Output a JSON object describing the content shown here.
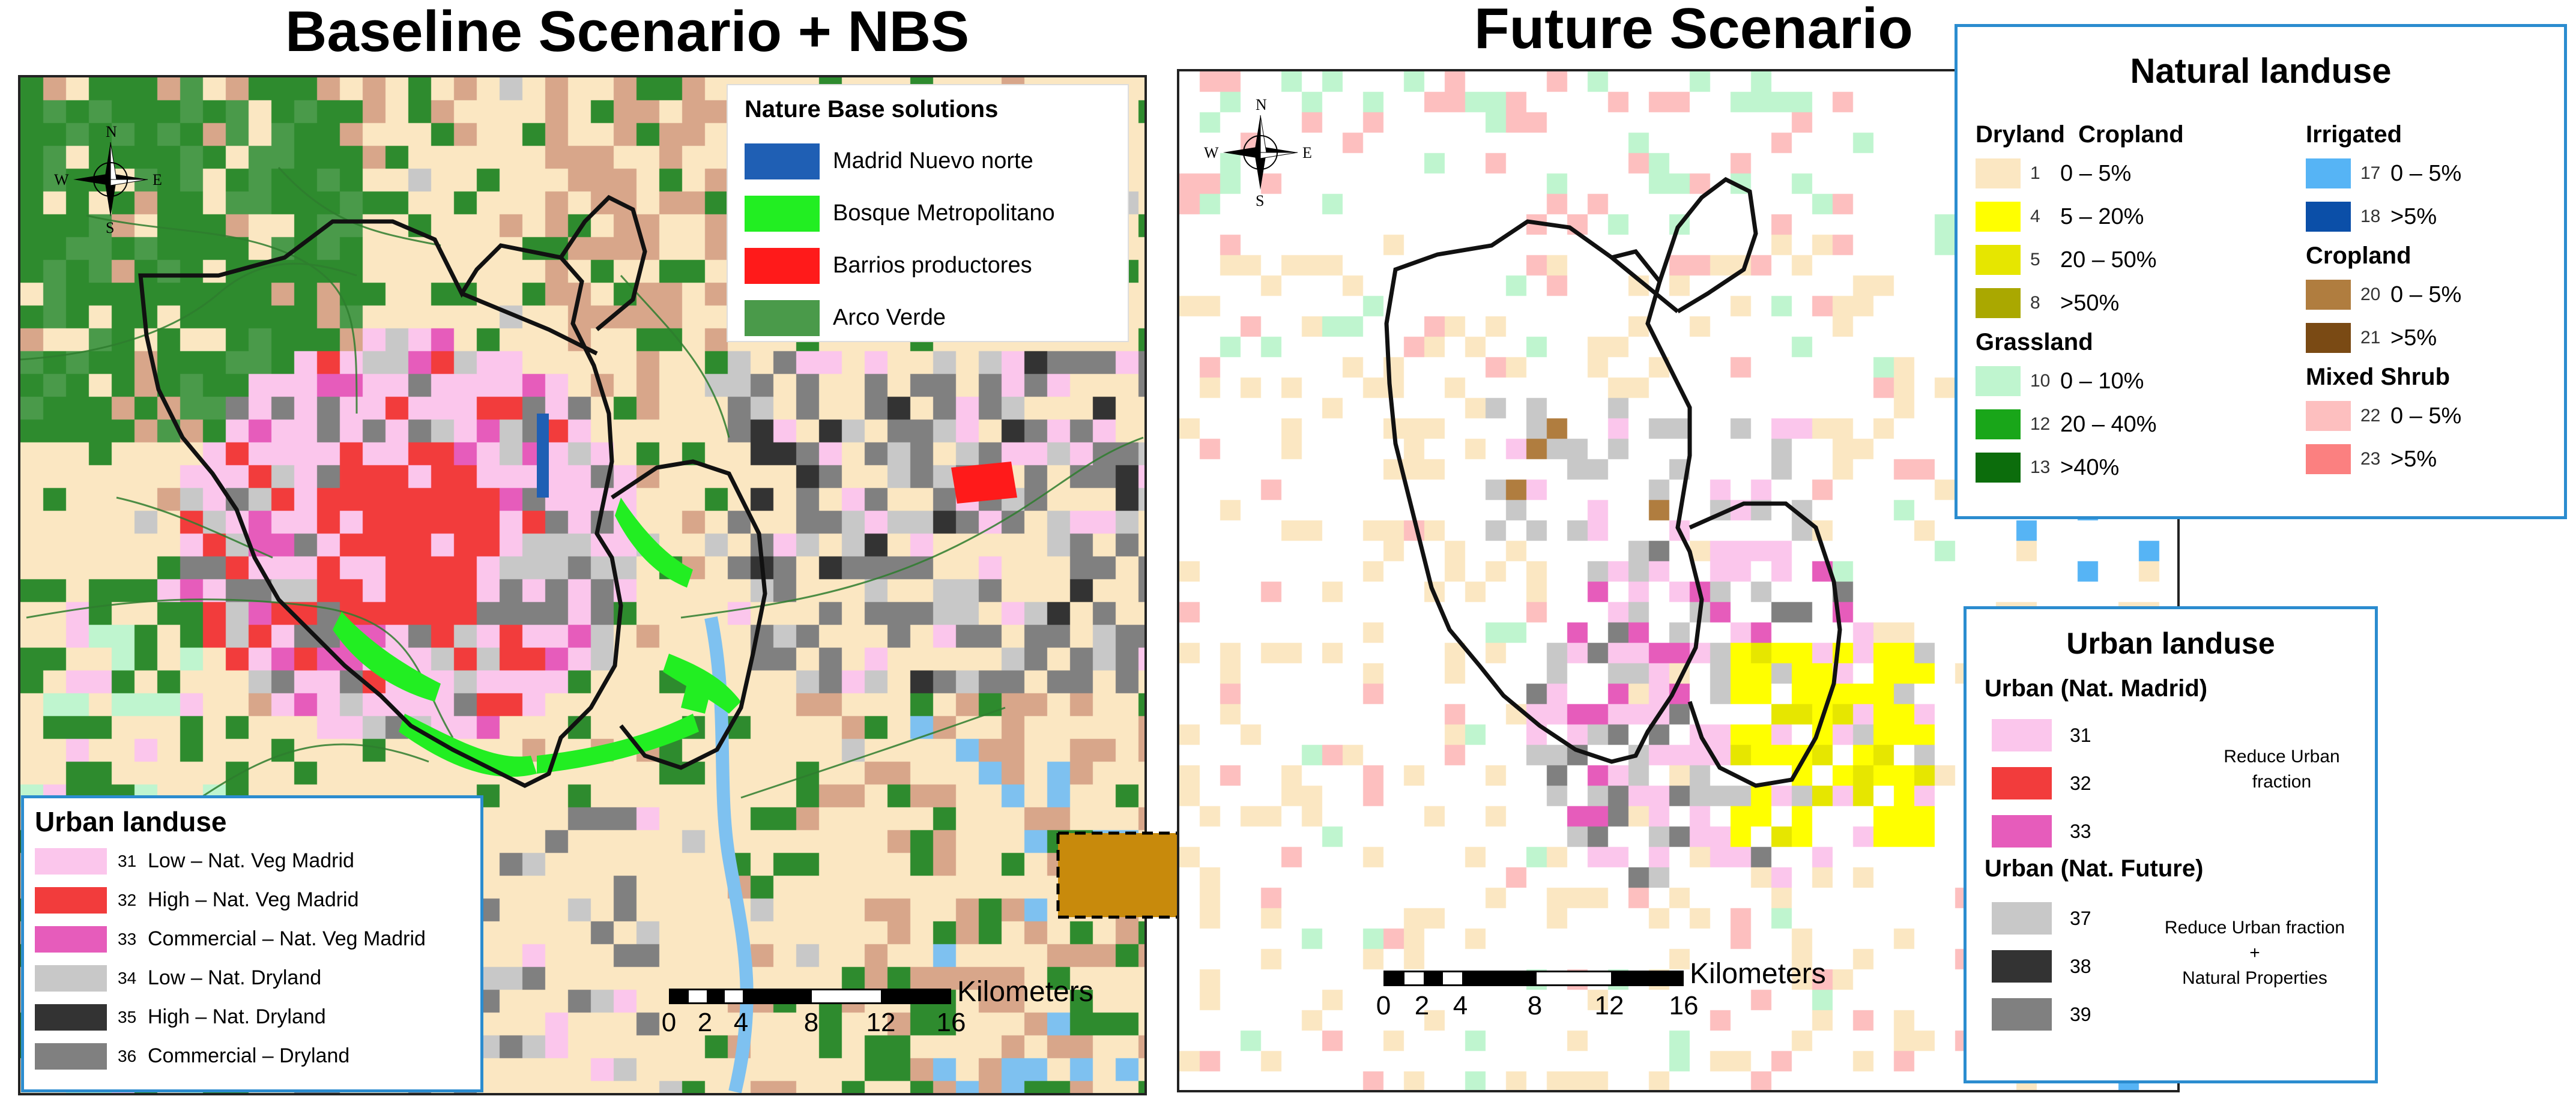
{
  "titles": {
    "left": "Baseline Scenario + NBS",
    "right": "Future Scenario"
  },
  "nbs_legend": {
    "title": "Nature Base solutions",
    "items": [
      {
        "label": "Madrid Nuevo norte",
        "color": "#1f5fb4"
      },
      {
        "label": "Bosque Metropolitano",
        "color": "#22ee22"
      },
      {
        "label": "Barrios productores",
        "color": "#ff1a1a"
      },
      {
        "label": "Arco Verde",
        "color": "#4a9a4a"
      }
    ]
  },
  "urban_legend_left": {
    "title": "Urban landuse",
    "items": [
      {
        "code": "31",
        "label": "Low – Nat. Veg Madrid",
        "color": "#fbc6ec"
      },
      {
        "code": "32",
        "label": "High – Nat. Veg Madrid",
        "color": "#f23c3c"
      },
      {
        "code": "33",
        "label": "Commercial – Nat. Veg Madrid",
        "color": "#e65cbb"
      },
      {
        "code": "34",
        "label": "Low – Nat. Dryland",
        "color": "#c8c8c8"
      },
      {
        "code": "35",
        "label": "High – Nat. Dryland",
        "color": "#333333"
      },
      {
        "code": "36",
        "label": "Commercial – Dryland",
        "color": "#808080"
      }
    ]
  },
  "natural_legend": {
    "title": "Natural landuse",
    "dryland_heading": "Dryland",
    "cropland_heading": "Cropland",
    "dryland": [
      {
        "code": "1",
        "label": "0 – 5%",
        "color": "#fbe7c2"
      },
      {
        "code": "4",
        "label": "5 – 20%",
        "color": "#ffff00"
      },
      {
        "code": "5",
        "label": "20 – 50%",
        "color": "#e6e600"
      },
      {
        "code": "8",
        "label": ">50%",
        "color": "#aaa800"
      }
    ],
    "grassland_heading": "Grassland",
    "grassland": [
      {
        "code": "10",
        "label": "0 – 10%",
        "color": "#bff5cf"
      },
      {
        "code": "12",
        "label": "20 – 40%",
        "color": "#19a619"
      },
      {
        "code": "13",
        "label": ">40%",
        "color": "#0c6d0c"
      }
    ],
    "irrigated_heading": "Irrigated",
    "irrigated": [
      {
        "code": "17",
        "label": "0 – 5%",
        "color": "#56b4f5"
      },
      {
        "code": "18",
        "label": ">5%",
        "color": "#0b4fa8"
      }
    ],
    "cropland2_heading": "Cropland",
    "cropland2": [
      {
        "code": "20",
        "label": "0 – 5%",
        "color": "#b07d3f"
      },
      {
        "code": "21",
        "label": ">5%",
        "color": "#7a4a14"
      }
    ],
    "shrub_heading": "Mixed Shrub",
    "shrub": [
      {
        "code": "22",
        "label": "0 – 5%",
        "color": "#fdbfbf"
      },
      {
        "code": "23",
        "label": ">5%",
        "color": "#fb8080"
      }
    ]
  },
  "urban_legend_right": {
    "title": "Urban landuse",
    "group1_heading": "Urban (Nat. Madrid)",
    "group1": [
      {
        "code": "31",
        "color": "#fbc6ec"
      },
      {
        "code": "32",
        "color": "#f23c3c"
      },
      {
        "code": "33",
        "color": "#e65cbb"
      }
    ],
    "group1_note": [
      "Reduce Urban",
      "fraction"
    ],
    "group2_heading": "Urban (Nat. Future)",
    "group2": [
      {
        "code": "37",
        "color": "#c8c8c8"
      },
      {
        "code": "38",
        "color": "#333333"
      },
      {
        "code": "39",
        "color": "#808080"
      }
    ],
    "group2_note": [
      "Reduce Urban fraction",
      "+",
      "Natural Properties"
    ]
  },
  "scale_left": {
    "unit": "Kilometers",
    "ticks": [
      "0",
      "2",
      "4",
      "8",
      "12",
      "16"
    ]
  },
  "scale_right": {
    "unit": "Kilometers",
    "ticks": [
      "0",
      "2",
      "4",
      "8",
      "12",
      "16"
    ]
  },
  "compass": {
    "n": "N",
    "s": "S",
    "e": "E",
    "w": "W"
  },
  "arrow_color": "#c88a0c"
}
